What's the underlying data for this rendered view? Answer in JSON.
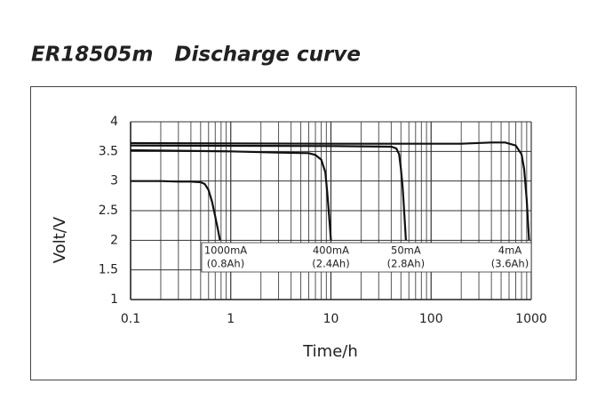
{
  "chart_data": {
    "type": "line",
    "title": "ER18505m   Discharge curve",
    "xlabel": "Time/h",
    "ylabel": "Volt/V",
    "xscale": "log",
    "xlim": [
      0.1,
      1000
    ],
    "xticks": [
      0.1,
      1,
      10,
      100,
      1000
    ],
    "minor_xticks": [
      0.2,
      0.3,
      0.4,
      0.5,
      0.6,
      0.7,
      0.8,
      0.9,
      2,
      3,
      4,
      5,
      6,
      7,
      8,
      9,
      20,
      30,
      40,
      50,
      60,
      70,
      80,
      90,
      200,
      300,
      400,
      500,
      600,
      700,
      800,
      900
    ],
    "ylim": [
      1,
      4
    ],
    "yticks": [
      1,
      1.5,
      2,
      2.5,
      3,
      3.5,
      4
    ],
    "grid": true,
    "series": [
      {
        "name": "1000mA",
        "note": "(0.8Ah)",
        "color": "#111111",
        "x": [
          0.1,
          0.2,
          0.3,
          0.4,
          0.5,
          0.55,
          0.6,
          0.65,
          0.7,
          0.75,
          0.78
        ],
        "values": [
          3.0,
          3.0,
          2.99,
          2.99,
          2.98,
          2.95,
          2.85,
          2.65,
          2.4,
          2.15,
          2.0
        ]
      },
      {
        "name": "400mA",
        "note": "(2.4Ah)",
        "color": "#111111",
        "x": [
          0.1,
          1,
          3,
          6,
          7,
          8,
          8.8,
          9.2,
          9.6,
          10
        ],
        "values": [
          3.52,
          3.5,
          3.48,
          3.47,
          3.44,
          3.36,
          3.15,
          2.8,
          2.4,
          2.0
        ]
      },
      {
        "name": "50mA",
        "note": "(2.8Ah)",
        "color": "#111111",
        "x": [
          0.1,
          10,
          40,
          45,
          48,
          50,
          52,
          54,
          56
        ],
        "values": [
          3.6,
          3.59,
          3.58,
          3.55,
          3.45,
          3.2,
          2.9,
          2.45,
          2.0
        ]
      },
      {
        "name": "4mA",
        "note": "(3.6Ah)",
        "color": "#111111",
        "x": [
          0.1,
          10,
          100,
          200,
          400,
          550,
          700,
          800,
          850,
          900,
          950
        ],
        "values": [
          3.64,
          3.63,
          3.63,
          3.63,
          3.65,
          3.65,
          3.6,
          3.45,
          3.2,
          2.7,
          2.0
        ]
      }
    ]
  }
}
